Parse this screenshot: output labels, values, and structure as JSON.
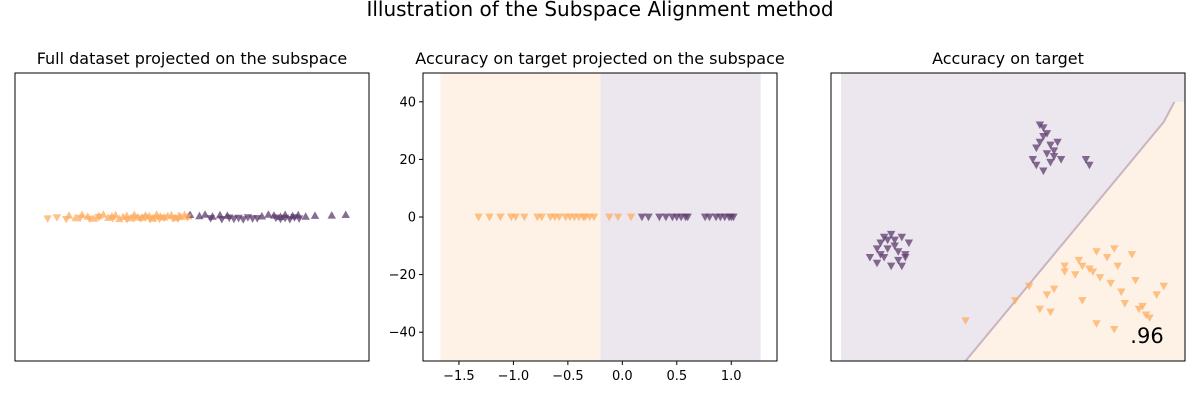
{
  "figure_title": "Illustration of the Subspace Alignment method",
  "colors": {
    "orange": "#fdae61",
    "purple": "#5e3c6e",
    "bg_orange": "#fef1e6",
    "bg_purple": "#ece6ef"
  },
  "panels": [
    {
      "title": "Full dataset projected on the subspace"
    },
    {
      "title": "Accuracy on target projected on the subspace"
    },
    {
      "title": "Accuracy on target",
      "annotation": ".96"
    }
  ],
  "chart_data": [
    {
      "type": "scatter",
      "title": "Full dataset projected on the subspace",
      "axes_visible": false,
      "xlim": [
        -1.9,
        1.9
      ],
      "ylim": [
        -50,
        50
      ],
      "series": [
        {
          "class": "source",
          "marker": "triangle-up",
          "color": "orange",
          "x": [
            -1.32,
            -1.25,
            -1.18,
            -1.12,
            -1.05,
            -1.0,
            -0.95,
            -0.9,
            -0.86,
            -0.82,
            -0.78,
            -0.74,
            -0.7,
            -0.66,
            -0.62,
            -0.58,
            -0.54,
            -0.5,
            -0.46,
            -0.42,
            -0.38,
            -0.34,
            -0.3,
            -0.26,
            -0.22,
            -0.18,
            -0.14,
            -0.12,
            -0.08,
            -0.04
          ],
          "y": [
            0.6,
            -0.3,
            0.8,
            0.2,
            -0.5,
            0.4,
            0.9,
            -0.2,
            0.3,
            0.7,
            -0.6,
            0.1,
            0.5,
            -0.4,
            0.8,
            0.0,
            -0.2,
            0.6,
            0.3,
            -0.5,
            0.9,
            0.2,
            -0.1,
            0.4,
            0.7,
            -0.3,
            0.5,
            0.1,
            0.8,
            0.3
          ]
        },
        {
          "class": "source",
          "marker": "triangle-up",
          "color": "purple",
          "x": [
            -0.02,
            0.08,
            0.14,
            0.22,
            0.3,
            0.38,
            0.75,
            0.82,
            0.88,
            0.95,
            1.0,
            1.08,
            1.14,
            1.22,
            1.32,
            1.5,
            1.65
          ],
          "y": [
            0.8,
            0.4,
            0.9,
            0.2,
            0.7,
            0.5,
            0.3,
            0.9,
            0.6,
            0.1,
            0.8,
            0.4,
            0.7,
            0.2,
            0.5,
            0.6,
            0.8
          ]
        },
        {
          "class": "target",
          "marker": "triangle-down",
          "color": "orange",
          "x": [
            -1.55,
            -1.45,
            -1.35,
            -1.2,
            -1.1,
            -1.0,
            -0.85,
            -0.7,
            -0.62,
            -0.55,
            -0.5,
            -0.45,
            -0.4,
            -0.35,
            -0.3,
            -0.2,
            -0.15,
            -0.05
          ],
          "y": [
            -0.6,
            -0.2,
            -0.8,
            -0.4,
            -0.7,
            -0.1,
            -0.5,
            -0.9,
            -0.3,
            -0.6,
            -0.2,
            -0.8,
            -0.4,
            -0.7,
            -0.3,
            -0.5,
            -0.6,
            -0.2
          ]
        },
        {
          "class": "target",
          "marker": "triangle-down",
          "color": "purple",
          "x": [
            0.2,
            0.32,
            0.4,
            0.45,
            0.5,
            0.55,
            0.6,
            0.65,
            0.7,
            0.9,
            0.95,
            1.0,
            1.05,
            1.1,
            1.15
          ],
          "y": [
            -0.5,
            -0.8,
            -0.3,
            -0.7,
            -0.4,
            -0.9,
            -0.2,
            -0.6,
            -0.5,
            -0.3,
            -0.7,
            -0.4,
            -0.8,
            -0.2,
            -0.6
          ]
        }
      ]
    },
    {
      "type": "scatter",
      "title": "Accuracy on target projected on the subspace",
      "xlim": [
        -1.83,
        1.42
      ],
      "ylim": [
        -50,
        50
      ],
      "xticks": [
        -1.5,
        -1.0,
        -0.5,
        0.0,
        0.5,
        1.0
      ],
      "xtick_labels": [
        "−1.5",
        "−1.0",
        "−0.5",
        "0.0",
        "0.5",
        "1.0"
      ],
      "yticks": [
        -40,
        -20,
        0,
        20,
        40
      ],
      "ytick_labels": [
        "−40",
        "−20",
        "0",
        "20",
        "40"
      ],
      "regions": [
        {
          "class": "orange",
          "x_from": -1.67,
          "x_to": -0.2
        },
        {
          "class": "purple",
          "x_from": -0.2,
          "x_to": 1.27
        }
      ],
      "series": [
        {
          "class": "target",
          "marker": "triangle-down",
          "color": "orange",
          "x": [
            -1.32,
            -1.22,
            -1.12,
            -1.02,
            -0.98,
            -0.9,
            -0.78,
            -0.74,
            -0.66,
            -0.62,
            -0.58,
            -0.52,
            -0.48,
            -0.44,
            -0.4,
            -0.36,
            -0.34,
            -0.3,
            -0.26,
            -0.12,
            -0.04,
            0.08
          ],
          "y": [
            0,
            0,
            0,
            0,
            0,
            0,
            0,
            0,
            0,
            0,
            0,
            0,
            0,
            0,
            0,
            0,
            0,
            0,
            0,
            0,
            0,
            0
          ]
        },
        {
          "class": "target",
          "marker": "triangle-down",
          "color": "purple",
          "x": [
            0.18,
            0.24,
            0.34,
            0.4,
            0.46,
            0.5,
            0.54,
            0.58,
            0.6,
            0.76,
            0.8,
            0.86,
            0.9,
            0.94,
            0.98,
            1.0,
            1.02
          ],
          "y": [
            0,
            0,
            0,
            0,
            0,
            0,
            0,
            0,
            0,
            0,
            0,
            0,
            0,
            0,
            0,
            0,
            0
          ]
        }
      ]
    },
    {
      "type": "scatter",
      "title": "Accuracy on target",
      "axes_visible": false,
      "annotation": ".96",
      "xlim": [
        0,
        10
      ],
      "ylim": [
        0,
        10
      ],
      "regions": [
        {
          "class": "purple",
          "side": "upper-left"
        },
        {
          "class": "orange",
          "side": "lower-right"
        }
      ],
      "decision_boundary": [
        [
          3.8,
          0.0
        ],
        [
          9.4,
          8.3
        ],
        [
          9.7,
          9.0
        ]
      ],
      "series": [
        {
          "class": "target",
          "marker": "triangle-down",
          "color": "purple",
          "x": [
            1.1,
            1.3,
            1.4,
            1.5,
            1.6,
            1.7,
            1.8,
            1.9,
            2.0,
            2.1,
            2.2,
            1.3,
            1.5,
            1.7,
            1.9,
            2.1,
            1.6,
            1.8,
            2.0,
            1.4,
            5.7,
            5.8,
            5.9,
            6.0,
            6.1,
            6.2,
            6.3,
            6.4,
            5.8,
            6.0,
            6.2,
            6.1,
            6.0,
            5.9,
            6.3,
            7.2,
            7.3,
            6.5
          ],
          "y": [
            3.6,
            3.9,
            4.1,
            4.3,
            4.2,
            4.4,
            4.0,
            3.8,
            4.3,
            3.6,
            4.1,
            3.4,
            3.6,
            3.3,
            3.5,
            3.7,
            3.9,
            4.2,
            3.3,
            3.7,
            7.0,
            7.4,
            7.6,
            7.8,
            7.2,
            7.5,
            7.1,
            7.6,
            6.8,
            6.6,
            6.9,
            7.9,
            8.1,
            8.2,
            7.3,
            7.0,
            6.8,
            7.0
          ]
        },
        {
          "class": "target",
          "marker": "triangle-down",
          "color": "orange",
          "x": [
            3.8,
            5.2,
            5.6,
            5.9,
            6.3,
            6.6,
            6.9,
            7.0,
            7.1,
            7.3,
            7.4,
            7.5,
            7.6,
            7.8,
            7.9,
            8.0,
            8.1,
            8.2,
            8.3,
            8.5,
            8.6,
            8.7,
            8.9,
            9.0,
            9.2,
            9.4,
            6.2,
            7.5,
            8.0,
            8.8,
            7.1,
            6.1,
            6.6
          ],
          "y": [
            1.4,
            2.1,
            2.6,
            1.8,
            2.5,
            3.1,
            3.0,
            3.5,
            3.3,
            3.2,
            3.1,
            3.8,
            2.9,
            3.6,
            2.7,
            3.9,
            3.3,
            2.4,
            2.0,
            3.7,
            2.8,
            1.8,
            1.6,
            1.5,
            2.3,
            2.6,
            1.7,
            1.3,
            1.1,
            1.9,
            2.1,
            2.3,
            3.3
          ]
        }
      ]
    }
  ]
}
